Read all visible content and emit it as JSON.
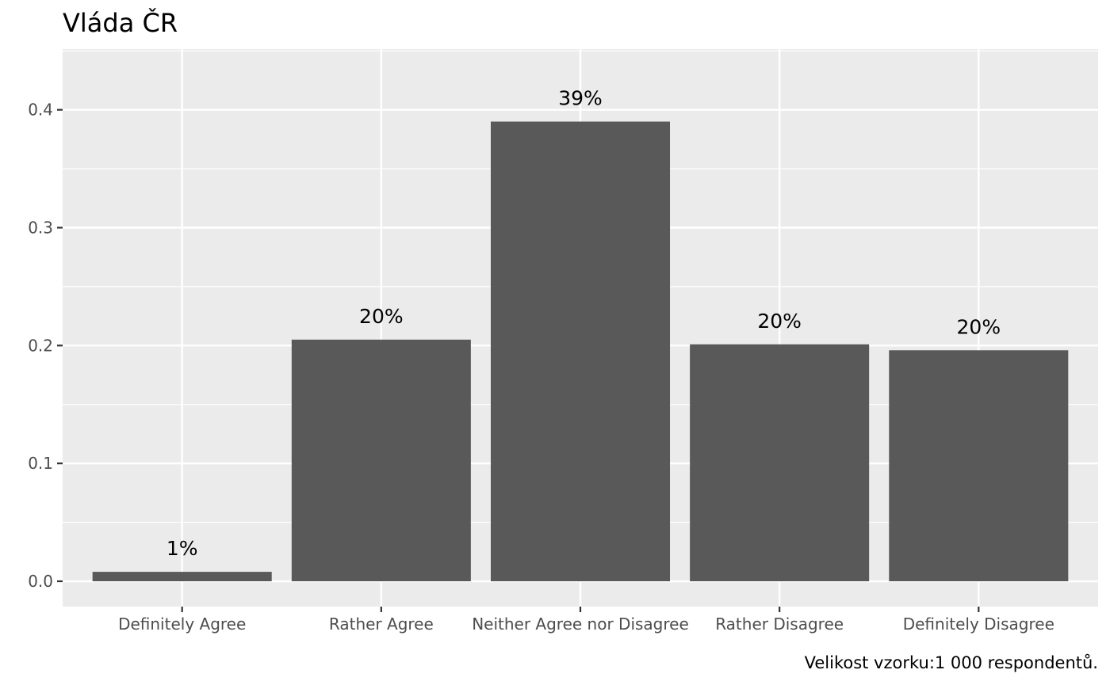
{
  "chart_data": {
    "type": "bar",
    "title": "Vláda ČR",
    "caption": "Velikost vzorku:1 000 respondentů.",
    "xlabel": "",
    "ylabel": "",
    "categories": [
      "Definitely Agree",
      "Rather Agree",
      "Neither Agree nor Disagree",
      "Rather Disagree",
      "Definitely Disagree"
    ],
    "values": [
      0.008,
      0.205,
      0.39,
      0.201,
      0.196
    ],
    "labels": [
      "1%",
      "20%",
      "39%",
      "20%",
      "20%"
    ],
    "y_ticks": [
      "0.0",
      "0.1",
      "0.2",
      "0.3",
      "0.4"
    ],
    "ylim": [
      -0.0215,
      0.4515
    ],
    "grid": true,
    "legend": "none",
    "colors": {
      "bar": "#595959",
      "panel": "#ebebeb",
      "grid": "#ffffff",
      "text": "#000000",
      "axis_text": "#4d4d4d",
      "tick": "#333333"
    }
  }
}
